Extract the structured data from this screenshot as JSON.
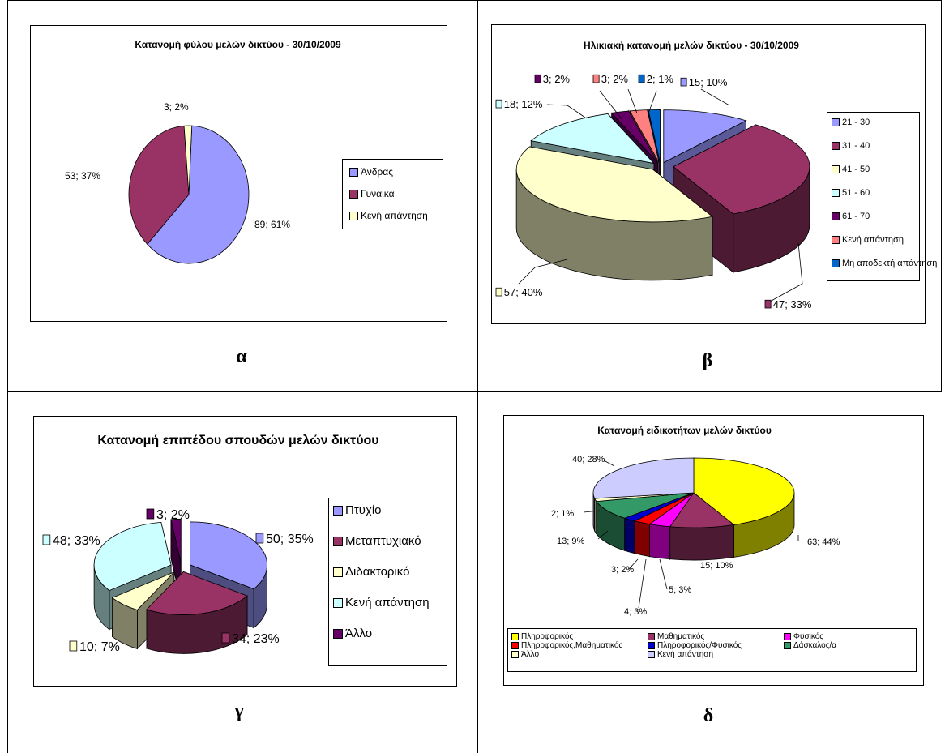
{
  "panels": {
    "a": {
      "caption": "α"
    },
    "b": {
      "caption": "β"
    },
    "c": {
      "caption": "γ"
    },
    "d": {
      "caption": "δ"
    }
  },
  "chart_data": [
    {
      "id": "a",
      "type": "pie",
      "title": "Κατανομή φύλου μελών δικτύου - 30/10/2009",
      "legend_position": "right",
      "slices": [
        {
          "name": "Άνδρας",
          "value": 89,
          "percent": 61,
          "label": "89; 61%",
          "color": "#9999FF",
          "side": "#6666CC"
        },
        {
          "name": "Γυναίκα",
          "value": 53,
          "percent": 37,
          "label": "53; 37%",
          "color": "#993366",
          "side": "#661A40"
        },
        {
          "name": "Κενή απάντηση",
          "value": 3,
          "percent": 2,
          "label": "3; 2%",
          "color": "#FFFFCC",
          "side": "#CCCC99"
        }
      ]
    },
    {
      "id": "b",
      "type": "pie",
      "title": "Ηλικιακή κατανομή μελών δικτύου - 30/10/2009",
      "legend_position": "right",
      "slices": [
        {
          "name": "21 - 30",
          "value": 15,
          "percent": 10,
          "label": "15; 10%",
          "color": "#9999FF",
          "side": "#5A5A99"
        },
        {
          "name": "31 - 40",
          "value": 47,
          "percent": 33,
          "label": "47; 33%",
          "color": "#993366",
          "side": "#4D1A33"
        },
        {
          "name": "41 - 50",
          "value": 57,
          "percent": 40,
          "label": "57; 40%",
          "color": "#FFFFCC",
          "side": "#808066"
        },
        {
          "name": "51 - 60",
          "value": 18,
          "percent": 12,
          "label": "18; 12%",
          "color": "#CCFFFF",
          "side": "#668080"
        },
        {
          "name": "61 - 70",
          "value": 3,
          "percent": 2,
          "label": "3; 2%",
          "color": "#660066",
          "side": "#330033"
        },
        {
          "name": "Κενή απάντηση",
          "value": 3,
          "percent": 2,
          "label": "3; 2%",
          "color": "#FF8080",
          "side": "#804040"
        },
        {
          "name": "Μη αποδεκτή απάντηση",
          "value": 2,
          "percent": 1,
          "label": "2; 1%",
          "color": "#0066CC",
          "side": "#003366"
        }
      ]
    },
    {
      "id": "c",
      "type": "pie",
      "title": "Κατανομή επιπέδου σπουδών μελών δικτύου",
      "legend_position": "right",
      "slices": [
        {
          "name": "Πτυχίο",
          "value": 50,
          "percent": 35,
          "label": "50; 35%",
          "color": "#9999FF",
          "side": "#4D4D80"
        },
        {
          "name": "Μεταπτυχιακό",
          "value": 34,
          "percent": 23,
          "label": "34; 23%",
          "color": "#993366",
          "side": "#4D1A33"
        },
        {
          "name": "Διδακτορικό",
          "value": 10,
          "percent": 7,
          "label": "10; 7%",
          "color": "#FFFFCC",
          "side": "#808066"
        },
        {
          "name": "Κενή απάντηση",
          "value": 48,
          "percent": 33,
          "label": "48; 33%",
          "color": "#CCFFFF",
          "side": "#668080"
        },
        {
          "name": "Άλλο",
          "value": 3,
          "percent": 2,
          "label": "3; 2%",
          "color": "#660066",
          "side": "#330033"
        }
      ]
    },
    {
      "id": "d",
      "type": "pie",
      "title": "Κατανομή ειδικοτήτων μελών δικτύου",
      "legend_position": "bottom",
      "slices": [
        {
          "name": "Πληροφορικός",
          "value": 63,
          "percent": 44,
          "label": "63; 44%",
          "color": "#FFFF00",
          "side": "#808000"
        },
        {
          "name": "Μαθηματικός",
          "value": 15,
          "percent": 10,
          "label": "15; 10%",
          "color": "#993366",
          "side": "#4D1A33"
        },
        {
          "name": "Φυσικός",
          "value": 5,
          "percent": 3,
          "label": "5; 3%",
          "color": "#FF00FF",
          "side": "#800080"
        },
        {
          "name": "Πληροφορικός,Μαθηματικός",
          "value": 4,
          "percent": 3,
          "label": "4; 3%",
          "color": "#FF0000",
          "side": "#800000"
        },
        {
          "name": "Πληροφορικός/Φυσικός",
          "value": 3,
          "percent": 2,
          "label": "3; 2%",
          "color": "#0000CC",
          "side": "#000066"
        },
        {
          "name": "Δάσκαλος/α",
          "value": 13,
          "percent": 9,
          "label": "13; 9%",
          "color": "#339966",
          "side": "#1A4D33"
        },
        {
          "name": "Άλλο",
          "value": 2,
          "percent": 1,
          "label": "2; 1%",
          "color": "#FFFFCC",
          "side": "#808066"
        },
        {
          "name": "Κενή απάντηση",
          "value": 40,
          "percent": 28,
          "label": "40; 28%",
          "color": "#CCCCFF",
          "side": "#666680"
        }
      ]
    }
  ]
}
